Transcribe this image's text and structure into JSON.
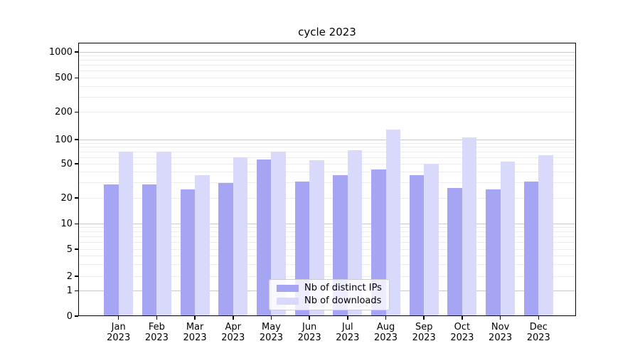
{
  "title": "cycle 2023",
  "legend": {
    "position": "lower center",
    "items": [
      {
        "label": "Nb of distinct IPs",
        "color": "#a5a5f4"
      },
      {
        "label": "Nb of downloads",
        "color": "#d9d9fb"
      }
    ]
  },
  "chart_data": {
    "type": "bar",
    "title": "cycle 2023",
    "categories": [
      "Jan",
      "Feb",
      "Mar",
      "Apr",
      "May",
      "Jun",
      "Jul",
      "Aug",
      "Sep",
      "Oct",
      "Nov",
      "Dec"
    ],
    "year": "2023",
    "series": [
      {
        "name": "Nb of distinct IPs",
        "color": "#a5a5f4",
        "values": [
          29,
          29,
          25,
          30,
          57,
          31,
          37,
          43,
          37,
          26,
          25,
          31
        ]
      },
      {
        "name": "Nb of downloads",
        "color": "#d9d9fb",
        "values": [
          70,
          70,
          37,
          60,
          70,
          55,
          74,
          128,
          50,
          106,
          53,
          64
        ]
      }
    ],
    "xlabel": "",
    "ylabel": "",
    "yscale": "symlog",
    "y_ticks": [
      0,
      1,
      2,
      5,
      10,
      20,
      50,
      100,
      200,
      500,
      1000
    ],
    "ylim": [
      0,
      1400
    ],
    "grid": "on",
    "grid_major_at": [
      1,
      10,
      100,
      1000
    ],
    "legend_position": "lower center"
  }
}
